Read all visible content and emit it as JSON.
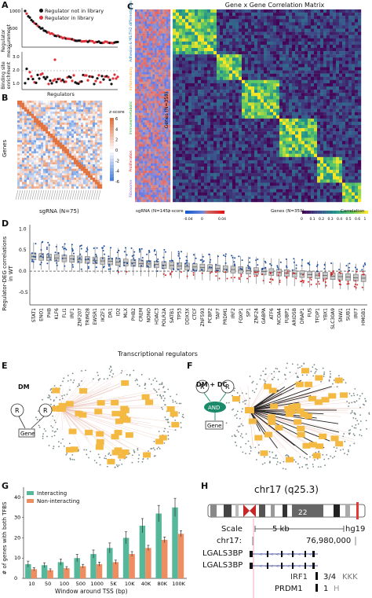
{
  "panels": {
    "A": {
      "letter": "A",
      "top_ylabel": "Regulator measurement",
      "bottom_ylabel": "Binding site enrichment",
      "xlabel": "Regulators",
      "legend": [
        {
          "label": "Regulator not in library",
          "color": "#111111"
        },
        {
          "label": "Regulator in library",
          "color": "#e0303a"
        }
      ],
      "yticks_top": [
        "1000",
        "500",
        "0"
      ],
      "yticks_bottom": [
        "3.0",
        "2.0",
        "1.0"
      ]
    },
    "B": {
      "letter": "B",
      "ylabel": "Genes",
      "xlabel": "sgRNA (N=75)",
      "colorbar_title": "z-score",
      "colorbar_ticks": [
        "6",
        "4",
        "2",
        "0",
        "-2",
        "-4",
        "-6"
      ]
    },
    "C": {
      "letter": "C",
      "title": "Gene x Gene Correlation Matrix",
      "left_xlabel": "sgRNA (N=145)",
      "center_ylabel": "Genes (N=359)",
      "bottom_label": "Genes (N=359)",
      "zscore_label": "z-score",
      "zscore_ticks": [
        "-0.04",
        "0",
        "0.04"
      ],
      "corr_label": "Correlation",
      "corr_ticks": [
        "0",
        "0.1",
        "0.2",
        "0.3",
        "0.4",
        "0.5",
        "0.6",
        "1"
      ],
      "side_labels": [
        {
          "text": "Adhesion & M1/TH2 differentiation",
          "color": "#1f77b4"
        },
        {
          "text": "Inflammatory",
          "color": "#ff9f1c"
        },
        {
          "text": "Immune/metabolic",
          "color": "#2ca02c"
        },
        {
          "text": "Proliferation",
          "color": "#d62728"
        },
        {
          "text": "Ribosome",
          "color": "#9467bd"
        }
      ]
    },
    "D": {
      "letter": "D",
      "ylabel": "Regulator-DEG correlations in WT",
      "xlabel": "Transcriptional regulators",
      "yticks": [
        "1.0",
        "0.5",
        "0.0",
        "-0.5"
      ]
    },
    "E": {
      "letter": "E",
      "model": "DM",
      "r1": "R",
      "r2": "R",
      "gene": "Gene"
    },
    "F": {
      "letter": "F",
      "model": "DM + DC",
      "r1": "R",
      "r2": "R",
      "gate": "AND",
      "gene": "Gene"
    },
    "G": {
      "letter": "G",
      "ylabel": "# of genes with both TFBS",
      "xlabel": "Window around TSS (bp)",
      "legend": [
        {
          "label": "Interacting",
          "color": "#56b89a"
        },
        {
          "label": "Non-interacting",
          "color": "#ef8d62"
        }
      ],
      "yticks": [
        "40",
        "30",
        "20",
        "10",
        "0"
      ]
    },
    "H": {
      "letter": "H",
      "chrom": "chr17 (q25.3)",
      "band": "22",
      "scale_label": "Scale",
      "scale_value": "5 kb",
      "assembly": "hg19",
      "chr_label": "chr17:",
      "coord": "76,980,000",
      "tracks": [
        "LGALS3BP",
        "LGALS3BP"
      ],
      "irf1": "IRF1",
      "irf1_score": "3/4",
      "irf1_seq": "KKK",
      "prdm1": "PRDM1",
      "prdm1_score": "1",
      "prdm1_seq": "H"
    }
  },
  "regulators": [
    "STAT1",
    "ENO1",
    "PHB",
    "KLF6",
    "FLI1",
    "IRF1",
    "ZNF207",
    "TRIM28",
    "EWSR1",
    "IKZF1",
    "DR1",
    "ID2",
    "MLX",
    "PHB2",
    "CREM",
    "NONO",
    "HDAC3",
    "POLR2A",
    "SATB1",
    "TP53",
    "DDX3X",
    "CTCF",
    "ZNF593",
    "PCBP2",
    "TAF7",
    "PRDM1",
    "IRF2",
    "FOXP1",
    "SP1",
    "ZNF24",
    "GABPA",
    "ATF6",
    "NCOA4",
    "FUBP1",
    "ARID5B",
    "DRAP1",
    "FUS",
    "TFDP1",
    "YBX1",
    "SLC30A9",
    "SNW1",
    "SUB1",
    "IRF7",
    "HMGB1"
  ],
  "chart_data": {
    "type": "bar",
    "title": "",
    "xlabel": "Window around TSS (bp)",
    "ylabel": "# of genes with both TFBS",
    "categories": [
      "10",
      "50",
      "100",
      "500",
      "1000",
      "5K",
      "10K",
      "40K",
      "80K",
      "100K"
    ],
    "series": [
      {
        "name": "Interacting",
        "values": [
          7,
          6.5,
          8,
          10,
          12,
          15,
          20,
          26,
          32,
          35
        ]
      },
      {
        "name": "Non-interacting",
        "values": [
          4.5,
          4,
          5,
          6,
          7,
          8,
          12,
          15,
          19,
          22
        ]
      }
    ],
    "errors": {
      "Interacting": [
        1.5,
        1.2,
        1.5,
        1.8,
        2,
        2.5,
        3,
        3.5,
        4,
        4.5
      ],
      "Non-interacting": [
        0.8,
        0.7,
        0.8,
        0.9,
        1,
        1,
        1.2,
        1.3,
        1.4,
        1.5
      ]
    },
    "ylim": [
      0,
      45
    ],
    "legend": "top-left",
    "grid": false
  }
}
